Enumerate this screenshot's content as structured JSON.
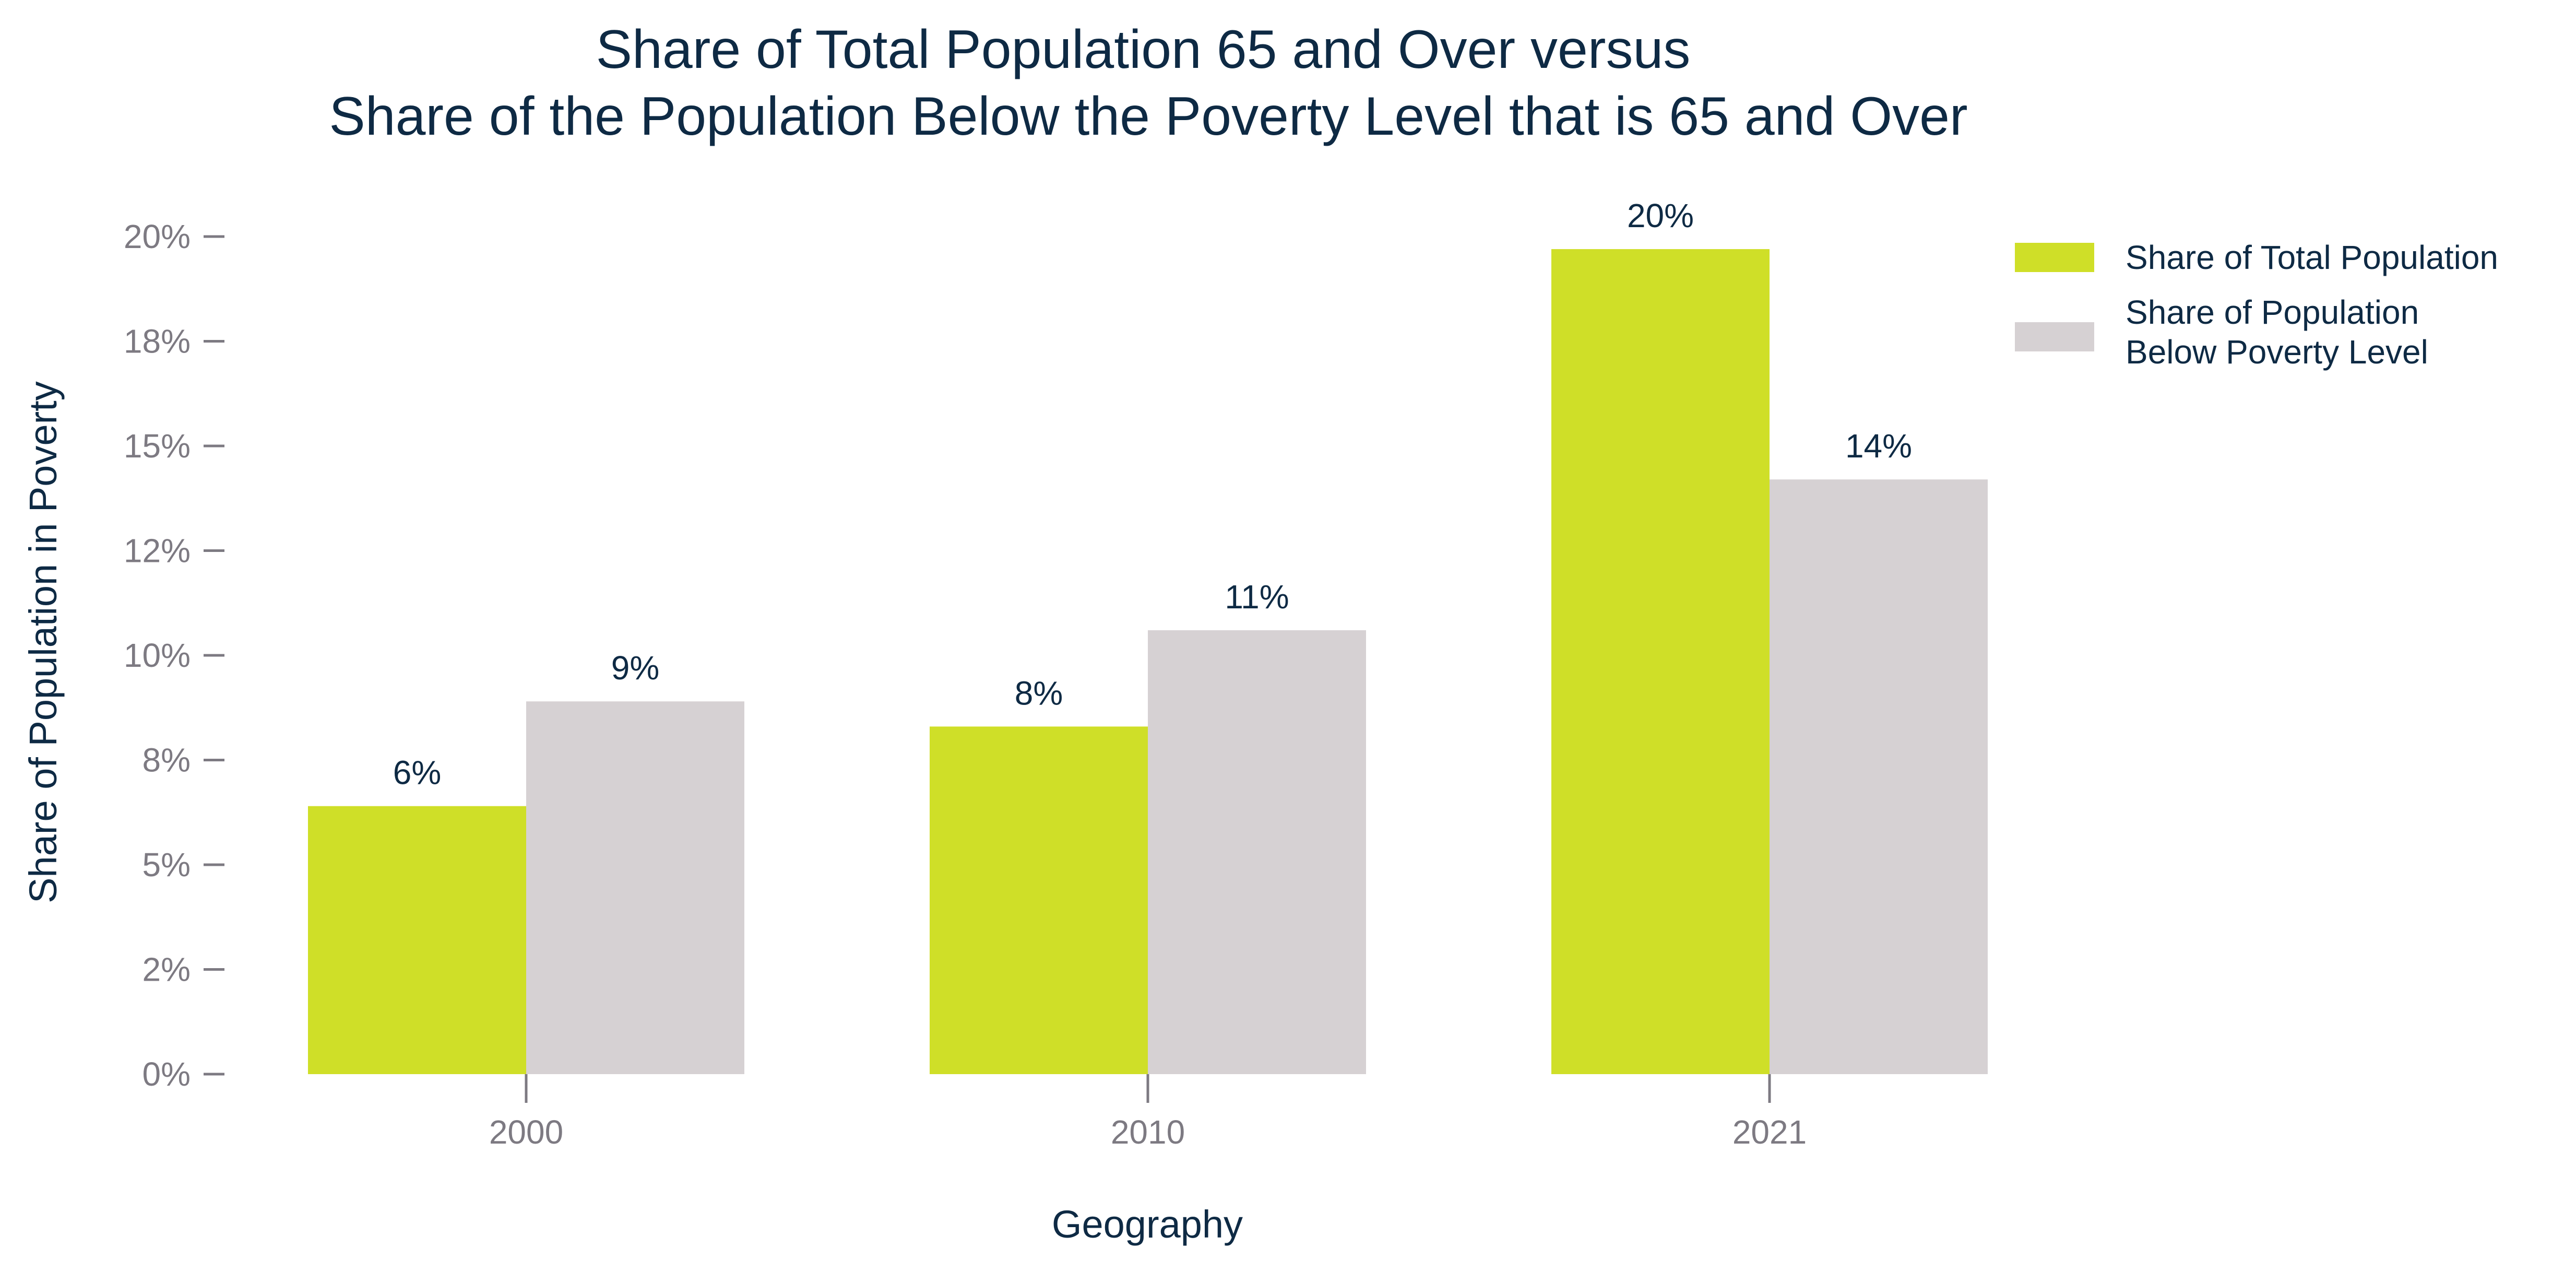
{
  "chart_data": {
    "type": "bar",
    "title": [
      "Share of Total Population 65 and Over versus",
      "Share of the Population Below the Poverty Level that is 65 and Over"
    ],
    "xlabel": "Geography",
    "ylabel": "Share of Population in Poverty",
    "categories": [
      "2000",
      "2010",
      "2021"
    ],
    "series": [
      {
        "name": "Share of Total Population",
        "color": "#cfdf28",
        "values": [
          6.4,
          8.3,
          19.7
        ],
        "labels": [
          "6%",
          "8%",
          "20%"
        ]
      },
      {
        "name": "Share of Population Below Poverty Level",
        "color": "#d6d1d3",
        "values": [
          8.9,
          10.6,
          14.2
        ],
        "labels": [
          "9%",
          "11%",
          "14%"
        ]
      }
    ],
    "y_ticks": [
      0,
      2.5,
      5,
      7.5,
      10,
      12.5,
      15,
      17.5,
      20
    ],
    "y_tick_labels": [
      "0%",
      "2%",
      "5%",
      "8%",
      "10%",
      "12%",
      "15%",
      "18%",
      "20%"
    ],
    "ylim": [
      0,
      20
    ],
    "grid": false,
    "legend_position": "top-right"
  }
}
